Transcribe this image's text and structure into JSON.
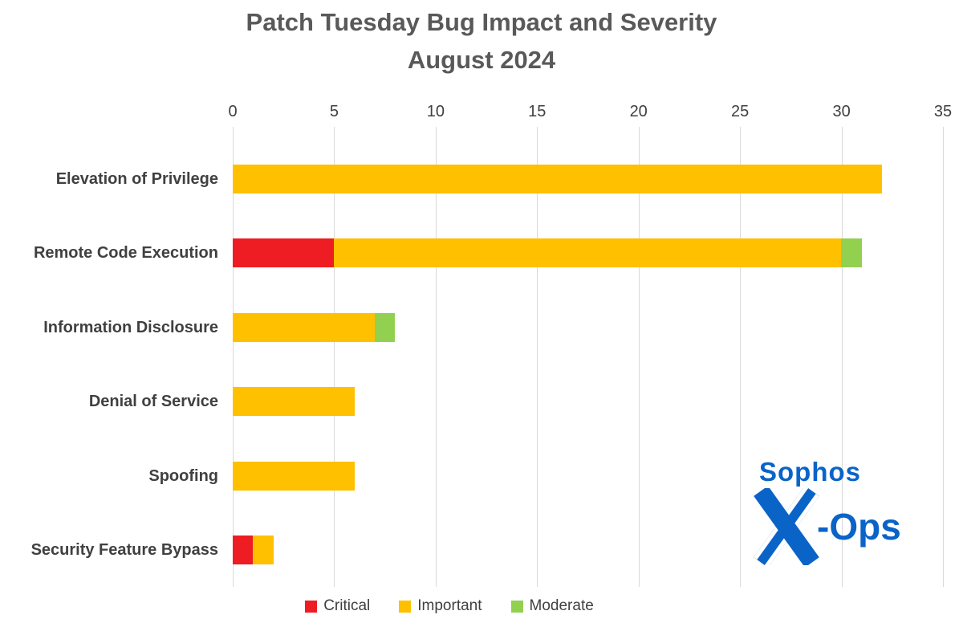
{
  "title": {
    "line1": "Patch Tuesday Bug Impact and Severity",
    "line2": "August 2024"
  },
  "chart_data": {
    "type": "bar",
    "orientation": "horizontal",
    "stacked": true,
    "title": "Patch Tuesday Bug Impact and Severity August 2024",
    "xlabel": "",
    "ylabel": "",
    "xlim": [
      0,
      35
    ],
    "xticks": [
      0,
      5,
      10,
      15,
      20,
      25,
      30,
      35
    ],
    "grid": true,
    "axis_position": "top",
    "legend_position": "bottom",
    "categories": [
      "Elevation of Privilege",
      "Remote Code Execution",
      "Information Disclosure",
      "Denial of Service",
      "Spoofing",
      "Security Feature Bypass"
    ],
    "series": [
      {
        "name": "Critical",
        "color": "#ee1c23",
        "values": [
          0,
          5,
          0,
          0,
          0,
          1
        ]
      },
      {
        "name": "Important",
        "color": "#ffc000",
        "values": [
          32,
          25,
          7,
          6,
          6,
          1
        ]
      },
      {
        "name": "Moderate",
        "color": "#92d050",
        "values": [
          0,
          1,
          1,
          0,
          0,
          0
        ]
      }
    ]
  },
  "legend": {
    "items": [
      {
        "label": "Critical",
        "color": "#ee1c23"
      },
      {
        "label": "Important",
        "color": "#ffc000"
      },
      {
        "label": "Moderate",
        "color": "#92d050"
      }
    ]
  },
  "logo": {
    "brand": "Sophos",
    "suffix": "-Ops"
  },
  "colors": {
    "background": "#ffffff",
    "title_text": "#595959",
    "axis_text": "#404040",
    "gridline": "#d9d9d9",
    "logo_blue": "#0a64c8"
  }
}
